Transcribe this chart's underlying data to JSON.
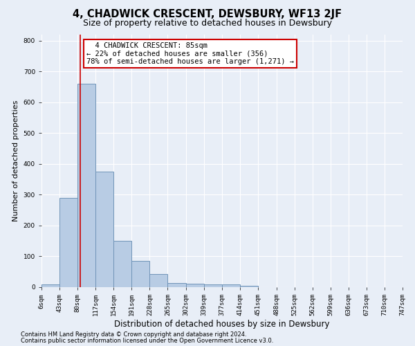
{
  "title": "4, CHADWICK CRESCENT, DEWSBURY, WF13 2JF",
  "subtitle": "Size of property relative to detached houses in Dewsbury",
  "xlabel": "Distribution of detached houses by size in Dewsbury",
  "ylabel": "Number of detached properties",
  "footer_line1": "Contains HM Land Registry data © Crown copyright and database right 2024.",
  "footer_line2": "Contains public sector information licensed under the Open Government Licence v3.0.",
  "bin_edges": [
    6,
    43,
    80,
    117,
    154,
    191,
    228,
    265,
    302,
    339,
    377,
    414,
    451,
    488,
    525,
    562,
    599,
    636,
    673,
    710,
    747
  ],
  "bar_heights": [
    8,
    290,
    660,
    375,
    150,
    85,
    42,
    13,
    12,
    10,
    10,
    5,
    0,
    0,
    0,
    0,
    0,
    0,
    0,
    0
  ],
  "bar_color": "#b8cce4",
  "bar_edge_color": "#7094b8",
  "property_size": 85,
  "vline_color": "#cc0000",
  "annotation_text": "  4 CHADWICK CRESCENT: 85sqm\n← 22% of detached houses are smaller (356)\n78% of semi-detached houses are larger (1,271) →",
  "annotation_box_color": "#ffffff",
  "annotation_box_edge": "#cc0000",
  "ylim": [
    0,
    820
  ],
  "yticks": [
    0,
    100,
    200,
    300,
    400,
    500,
    600,
    700,
    800
  ],
  "background_color": "#e8eef7",
  "plot_background": "#e8eef7",
  "grid_color": "#ffffff",
  "title_fontsize": 10.5,
  "subtitle_fontsize": 9,
  "xlabel_fontsize": 8.5,
  "ylabel_fontsize": 8,
  "tick_fontsize": 6.5,
  "footer_fontsize": 6,
  "annot_fontsize": 7.5
}
